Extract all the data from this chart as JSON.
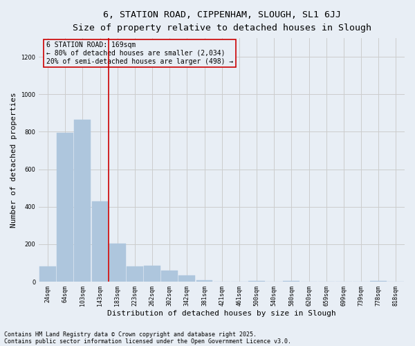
{
  "title_line1": "6, STATION ROAD, CIPPENHAM, SLOUGH, SL1 6JJ",
  "title_line2": "Size of property relative to detached houses in Slough",
  "xlabel": "Distribution of detached houses by size in Slough",
  "ylabel": "Number of detached properties",
  "categories": [
    "24sqm",
    "64sqm",
    "103sqm",
    "143sqm",
    "183sqm",
    "223sqm",
    "262sqm",
    "302sqm",
    "342sqm",
    "381sqm",
    "421sqm",
    "461sqm",
    "500sqm",
    "540sqm",
    "580sqm",
    "620sqm",
    "659sqm",
    "699sqm",
    "739sqm",
    "778sqm",
    "818sqm"
  ],
  "values": [
    80,
    795,
    865,
    430,
    205,
    80,
    85,
    60,
    35,
    8,
    0,
    0,
    5,
    0,
    4,
    0,
    0,
    0,
    0,
    5,
    0
  ],
  "bar_color": "#aec6dd",
  "bar_edgecolor": "#aec6dd",
  "grid_color": "#cccccc",
  "background_color": "#e8eef5",
  "annotation_text": "6 STATION ROAD: 169sqm\n← 80% of detached houses are smaller (2,034)\n20% of semi-detached houses are larger (498) →",
  "annotation_box_edgecolor": "#cc0000",
  "vline_color": "#cc0000",
  "ylim": [
    0,
    1300
  ],
  "yticks": [
    0,
    200,
    400,
    600,
    800,
    1000,
    1200
  ],
  "footer_line1": "Contains HM Land Registry data © Crown copyright and database right 2025.",
  "footer_line2": "Contains public sector information licensed under the Open Government Licence v3.0.",
  "title_fontsize": 9.5,
  "subtitle_fontsize": 8.5,
  "tick_fontsize": 6,
  "label_fontsize": 8,
  "annotation_fontsize": 7,
  "footer_fontsize": 6
}
